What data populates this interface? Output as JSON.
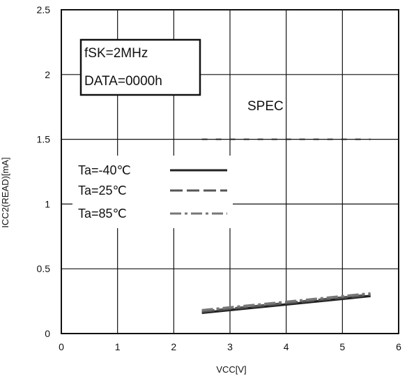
{
  "chart_data": {
    "type": "line",
    "xlabel": "VCC[V]",
    "ylabel": "ICC2(READ)[mA]",
    "xlim": [
      0,
      6
    ],
    "ylim": [
      0,
      2.5
    ],
    "x_ticks": [
      "0",
      "1",
      "2",
      "3",
      "4",
      "5",
      "6"
    ],
    "y_ticks": [
      "0",
      "0.5",
      "1",
      "1.5",
      "2",
      "2.5"
    ],
    "grid": true,
    "annotation_box": [
      "fSK=2MHz",
      "DATA=0000h"
    ],
    "spec_label": "SPEC",
    "spec_line": {
      "x": [
        2.5,
        5.5
      ],
      "y": [
        1.5,
        1.5
      ]
    },
    "legend_placement": "center-left",
    "series": [
      {
        "name": "Ta=-40℃",
        "x": [
          2.5,
          5.5
        ],
        "y": [
          0.16,
          0.29
        ],
        "color": "#222222",
        "dash": "solid"
      },
      {
        "name": "Ta=25℃",
        "x": [
          2.5,
          5.5
        ],
        "y": [
          0.17,
          0.3
        ],
        "color": "#555555",
        "dash": "dash"
      },
      {
        "name": "Ta=85℃",
        "x": [
          2.5,
          5.5
        ],
        "y": [
          0.18,
          0.31
        ],
        "color": "#777777",
        "dash": "dashdot"
      }
    ]
  }
}
